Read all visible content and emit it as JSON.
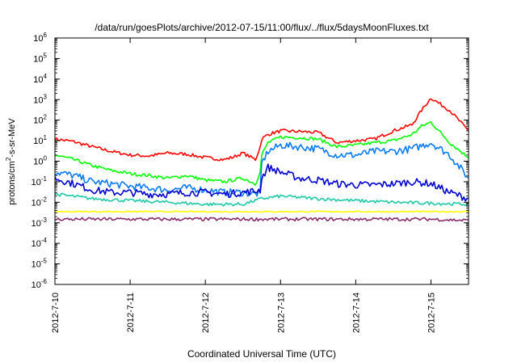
{
  "chart_data": {
    "type": "line",
    "title": "/data/run/goesPlots/archive/2012-07-15/11:00/flux/../flux/5daysMoonFluxes.txt",
    "xlabel": "Coordinated Universal Time (UTC)",
    "ylabel": {
      "prefix": "protons/cm",
      "sup": "2",
      "suffix": "-s-sr-MeV"
    },
    "y_scale": "log",
    "ylim": [
      1e-06,
      1000000.0
    ],
    "y_ticks": [
      {
        "value": 1e-06,
        "base": "10",
        "exp": "-6"
      },
      {
        "value": 1e-05,
        "base": "10",
        "exp": "-5"
      },
      {
        "value": 0.0001,
        "base": "10",
        "exp": "-4"
      },
      {
        "value": 0.001,
        "base": "10",
        "exp": "-3"
      },
      {
        "value": 0.01,
        "base": "10",
        "exp": "-2"
      },
      {
        "value": 0.1,
        "base": "10",
        "exp": "-1"
      },
      {
        "value": 1.0,
        "base": "10",
        "exp": "0"
      },
      {
        "value": 10.0,
        "base": "10",
        "exp": "1"
      },
      {
        "value": 100.0,
        "base": "10",
        "exp": "2"
      },
      {
        "value": 1000.0,
        "base": "10",
        "exp": "3"
      },
      {
        "value": 10000.0,
        "base": "10",
        "exp": "4"
      },
      {
        "value": 100000.0,
        "base": "10",
        "exp": "5"
      },
      {
        "value": 1000000.0,
        "base": "10",
        "exp": "6"
      }
    ],
    "xlim": [
      "2012-07-10",
      "2012-07-15 12:00"
    ],
    "x_ticks": [
      {
        "value": "2012-07-10",
        "label": "2012-7-10"
      },
      {
        "value": "2012-07-11",
        "label": "2012-7-11"
      },
      {
        "value": "2012-07-12",
        "label": "2012-7-12"
      },
      {
        "value": "2012-07-13",
        "label": "2012-7-13"
      },
      {
        "value": "2012-07-14",
        "label": "2012-7-14"
      },
      {
        "value": "2012-07-15",
        "label": "2012-7-15"
      }
    ],
    "grid": false,
    "legend": "none",
    "series": [
      {
        "color": "#ff0000",
        "x": [
          "2012-07-10",
          "2012-07-10 06:00",
          "2012-07-10 12:00",
          "2012-07-10 18:00",
          "2012-07-11",
          "2012-07-11 06:00",
          "2012-07-11 12:00",
          "2012-07-11 18:00",
          "2012-07-12",
          "2012-07-12 06:00",
          "2012-07-12 09:00",
          "2012-07-12 12:00",
          "2012-07-12 16:00",
          "2012-07-12 17:30",
          "2012-07-12 18:00",
          "2012-07-12 20:00",
          "2012-07-13",
          "2012-07-13 06:00",
          "2012-07-13 12:00",
          "2012-07-13 18:00",
          "2012-07-14",
          "2012-07-14 06:00",
          "2012-07-14 12:00",
          "2012-07-14 18:00",
          "2012-07-14 21:00",
          "2012-07-15",
          "2012-07-15 06:00",
          "2012-07-15 12:00"
        ],
        "y": [
          12,
          9,
          5,
          3,
          2,
          1.8,
          2.5,
          2.2,
          1.5,
          1.2,
          1.6,
          2.5,
          1.2,
          5,
          12,
          20,
          30,
          28,
          25,
          8,
          10,
          12,
          30,
          60,
          300,
          1200,
          300,
          30
        ]
      },
      {
        "color": "#00ff00",
        "x": [
          "2012-07-10",
          "2012-07-10 06:00",
          "2012-07-10 12:00",
          "2012-07-10 18:00",
          "2012-07-11",
          "2012-07-11 06:00",
          "2012-07-11 12:00",
          "2012-07-11 18:00",
          "2012-07-12",
          "2012-07-12 06:00",
          "2012-07-12 12:00",
          "2012-07-12 16:00",
          "2012-07-12 17:30",
          "2012-07-12 18:00",
          "2012-07-12 20:00",
          "2012-07-13",
          "2012-07-13 06:00",
          "2012-07-13 12:00",
          "2012-07-13 18:00",
          "2012-07-14",
          "2012-07-14 06:00",
          "2012-07-14 12:00",
          "2012-07-14 18:00",
          "2012-07-14 21:00",
          "2012-07-15",
          "2012-07-15 06:00",
          "2012-07-15 12:00"
        ],
        "y": [
          2,
          1.2,
          0.6,
          0.35,
          0.25,
          0.2,
          0.15,
          0.2,
          0.12,
          0.1,
          0.15,
          0.08,
          0.3,
          2,
          8,
          15,
          14,
          12,
          5,
          6,
          8,
          10,
          20,
          50,
          80,
          8,
          1.5
        ]
      },
      {
        "color": "#0a7bf0",
        "x": [
          "2012-07-10",
          "2012-07-10 06:00",
          "2012-07-10 12:00",
          "2012-07-10 18:00",
          "2012-07-11",
          "2012-07-11 06:00",
          "2012-07-11 12:00",
          "2012-07-11 18:00",
          "2012-07-12",
          "2012-07-12 06:00",
          "2012-07-12 12:00",
          "2012-07-12 16:00",
          "2012-07-12 17:30",
          "2012-07-12 18:00",
          "2012-07-12 20:00",
          "2012-07-13",
          "2012-07-13 06:00",
          "2012-07-13 12:00",
          "2012-07-13 18:00",
          "2012-07-14",
          "2012-07-14 06:00",
          "2012-07-14 12:00",
          "2012-07-14 18:00",
          "2012-07-15",
          "2012-07-15 06:00",
          "2012-07-15 12:00"
        ],
        "y": [
          0.3,
          0.2,
          0.1,
          0.08,
          0.06,
          0.05,
          0.04,
          0.05,
          0.04,
          0.03,
          0.03,
          0.025,
          0.03,
          0.8,
          3,
          6,
          5,
          4,
          2,
          2,
          3,
          3,
          4,
          8,
          2,
          0.15
        ]
      },
      {
        "color": "#0000d0",
        "x": [
          "2012-07-10",
          "2012-07-10 06:00",
          "2012-07-10 12:00",
          "2012-07-10 18:00",
          "2012-07-11",
          "2012-07-11 06:00",
          "2012-07-11 12:00",
          "2012-07-11 18:00",
          "2012-07-12",
          "2012-07-12 06:00",
          "2012-07-12 12:00",
          "2012-07-12 16:00",
          "2012-07-12 17:30",
          "2012-07-12 18:00",
          "2012-07-12 20:00",
          "2012-07-13",
          "2012-07-13 06:00",
          "2012-07-13 12:00",
          "2012-07-13 18:00",
          "2012-07-14",
          "2012-07-14 06:00",
          "2012-07-14 12:00",
          "2012-07-14 18:00",
          "2012-07-15",
          "2012-07-15 06:00",
          "2012-07-15 12:00"
        ],
        "y": [
          0.15,
          0.08,
          0.04,
          0.03,
          0.03,
          0.025,
          0.025,
          0.03,
          0.03,
          0.025,
          0.03,
          0.035,
          0.04,
          0.15,
          0.5,
          0.3,
          0.15,
          0.12,
          0.08,
          0.07,
          0.07,
          0.08,
          0.1,
          0.08,
          0.03,
          0.015
        ]
      },
      {
        "color": "#1fc8a8",
        "x": [
          "2012-07-10",
          "2012-07-10 12:00",
          "2012-07-11",
          "2012-07-11 12:00",
          "2012-07-12",
          "2012-07-12 12:00",
          "2012-07-12 18:00",
          "2012-07-13",
          "2012-07-13 12:00",
          "2012-07-14",
          "2012-07-14 12:00",
          "2012-07-15",
          "2012-07-15 12:00"
        ],
        "y": [
          0.025,
          0.015,
          0.012,
          0.01,
          0.008,
          0.008,
          0.015,
          0.02,
          0.015,
          0.012,
          0.01,
          0.009,
          0.008
        ]
      },
      {
        "color": "#ffff00",
        "x": [
          "2012-07-10",
          "2012-07-11",
          "2012-07-12",
          "2012-07-13",
          "2012-07-14",
          "2012-07-15",
          "2012-07-15 12:00"
        ],
        "y": [
          0.0035,
          0.0035,
          0.0035,
          0.0035,
          0.0035,
          0.0035,
          0.0035
        ]
      },
      {
        "color": "#8b2a6b",
        "x": [
          "2012-07-10",
          "2012-07-11",
          "2012-07-12",
          "2012-07-13",
          "2012-07-14",
          "2012-07-15",
          "2012-07-15 12:00"
        ],
        "y": [
          0.0015,
          0.0015,
          0.0015,
          0.0015,
          0.0015,
          0.0015,
          0.0013
        ]
      }
    ]
  }
}
